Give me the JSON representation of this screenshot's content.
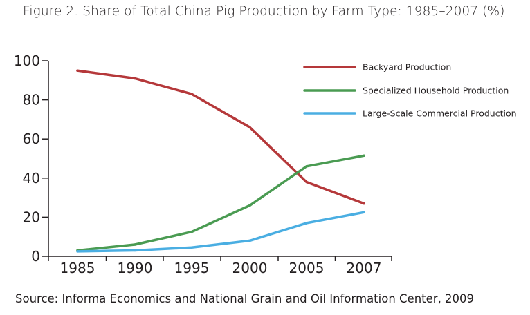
{
  "title": "Figure 2. Share of Total China Pig Production by Farm Type: 1985–2007 (%)",
  "source": "Source:  Informa Economics and National Grain and Oil Information Center, 2009",
  "chart_data": {
    "type": "line",
    "title": "Figure 2. Share of Total China Pig Production by Farm Type: 1985–2007 (%)",
    "xlabel": "",
    "ylabel": "",
    "categories": [
      "1985",
      "1990",
      "1995",
      "2000",
      "2005",
      "2007"
    ],
    "ylim": [
      0,
      100
    ],
    "yticks": [
      0,
      20,
      40,
      60,
      80,
      100
    ],
    "grid": false,
    "legend_position": "top-right",
    "series": [
      {
        "name": "Backyard Production",
        "color": "#b5383a",
        "values": [
          95,
          91,
          83,
          66,
          38,
          27
        ]
      },
      {
        "name": "Specialized Household Production",
        "color": "#4a9b52",
        "values": [
          3,
          6,
          12.5,
          26,
          46,
          51.5
        ]
      },
      {
        "name": "Large-Scale Commercial Production",
        "color": "#4aaee2",
        "values": [
          2.5,
          3,
          4.5,
          8,
          17,
          22.5
        ]
      }
    ]
  }
}
